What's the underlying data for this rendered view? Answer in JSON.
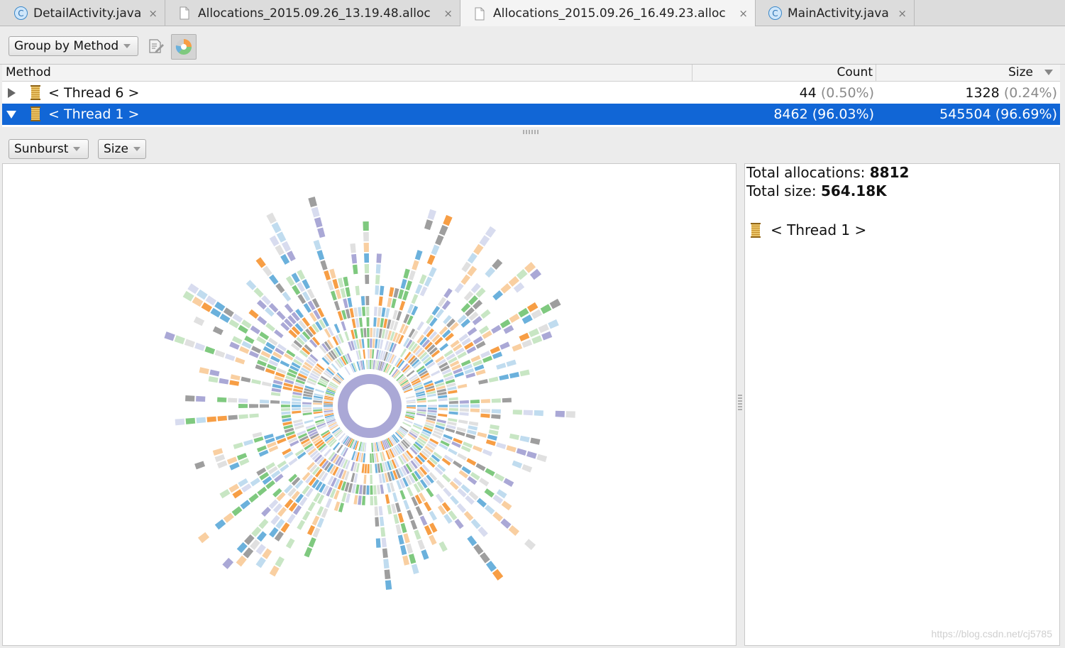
{
  "tabs": [
    {
      "label": "DetailActivity.java",
      "icon": "java-class-icon",
      "active": false
    },
    {
      "label": "Allocations_2015.09.26_13.19.48.alloc",
      "icon": "file-icon",
      "active": false
    },
    {
      "label": "Allocations_2015.09.26_16.49.23.alloc",
      "icon": "file-icon",
      "active": true
    },
    {
      "label": "MainActivity.java",
      "icon": "java-class-icon",
      "active": false
    }
  ],
  "tab_close_glyph": "×",
  "toolbar": {
    "group_by": "Group by Method",
    "export_icon": "export-icon",
    "chart_toggle_icon": "pie-chart-icon"
  },
  "table": {
    "columns": {
      "method": "Method",
      "count": "Count",
      "size": "Size"
    },
    "sort_icon": "sort-descending-icon",
    "rows": [
      {
        "name": "< Thread 6 >",
        "count": "44",
        "count_pct": "(0.50%)",
        "size": "1328",
        "size_pct": "(0.24%)",
        "expanded": false,
        "selected": false
      },
      {
        "name": "< Thread 1 >",
        "count": "8462",
        "count_pct": "(96.03%)",
        "size": "545504",
        "size_pct": "(96.69%)",
        "expanded": true,
        "selected": true
      }
    ]
  },
  "chart_controls": {
    "chart_type": "Sunburst",
    "metric": "Size"
  },
  "info": {
    "total_alloc_label": "Total allocations:",
    "total_alloc_value": "8812",
    "total_size_label": "Total size:",
    "total_size_value": "564.18K",
    "selected_thread": "< Thread 1 >"
  },
  "watermark": "https://blog.csdn.net/cj5785",
  "colors": {
    "selection": "#1166d6",
    "sunburst_palette": [
      "#e0e0e0",
      "#9e9e9e",
      "#7fc97f",
      "#aaa8d6",
      "#6bb1dc",
      "#f79e45",
      "#c8e6c4",
      "#f9cfa1",
      "#d8dcef",
      "#c0dcef"
    ],
    "center_ring": "#aaa8d6"
  },
  "chart_data": {
    "type": "sunburst",
    "center": "< Thread 1 >",
    "metric": "Size"
  }
}
